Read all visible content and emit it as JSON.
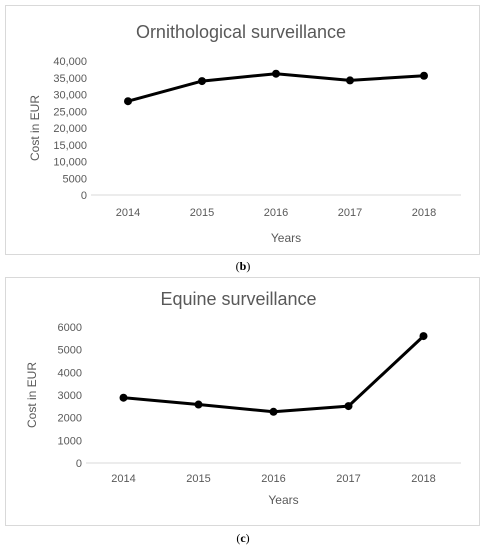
{
  "chart_data": [
    {
      "type": "line",
      "title": "Ornithological surveillance",
      "xlabel": "Years",
      "ylabel": "Cost in EUR",
      "categories": [
        "2014",
        "2015",
        "2016",
        "2017",
        "2018"
      ],
      "series": [
        {
          "values": [
            28000,
            34000,
            36200,
            34200,
            35600
          ]
        }
      ],
      "ylim": [
        0,
        40000
      ],
      "yticks": [
        "0",
        "5000",
        "10,000",
        "15,000",
        "20,000",
        "25,000",
        "30,000",
        "35,000",
        "40,000"
      ],
      "grid": false,
      "line_color": "#000000"
    },
    {
      "type": "line",
      "title": "Equine surveillance",
      "xlabel": "Years",
      "ylabel": "Cost in EUR",
      "categories": [
        "2014",
        "2015",
        "2016",
        "2017",
        "2018"
      ],
      "series": [
        {
          "values": [
            2880,
            2580,
            2260,
            2510,
            5600
          ]
        }
      ],
      "ylim": [
        0,
        6000
      ],
      "yticks": [
        "0",
        "1000",
        "2000",
        "3000",
        "4000",
        "5000",
        "6000"
      ],
      "grid": false,
      "line_color": "#000000"
    }
  ],
  "captions": {
    "b": "(b)",
    "c": "(c)"
  }
}
